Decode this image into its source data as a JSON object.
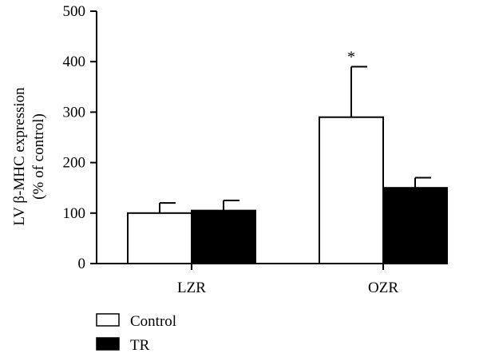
{
  "chart_data": {
    "type": "bar",
    "ylabel_line1": "LV β-MHC expression",
    "ylabel_line2": "(% of control)",
    "ylim": [
      0,
      500
    ],
    "yticks": [
      0,
      100,
      200,
      300,
      400,
      500
    ],
    "categories": [
      "LZR",
      "OZR"
    ],
    "series": [
      {
        "name": "Control",
        "values": [
          100,
          290
        ],
        "errors": [
          20,
          100
        ],
        "fill": "#ffffff"
      },
      {
        "name": "TR",
        "values": [
          105,
          150
        ],
        "errors": [
          20,
          20
        ],
        "fill": "#000000"
      }
    ],
    "annotations": [
      {
        "category": "OZR",
        "series": "Control",
        "text": "*"
      }
    ],
    "legend_position": "bottom-left",
    "grid": false
  }
}
